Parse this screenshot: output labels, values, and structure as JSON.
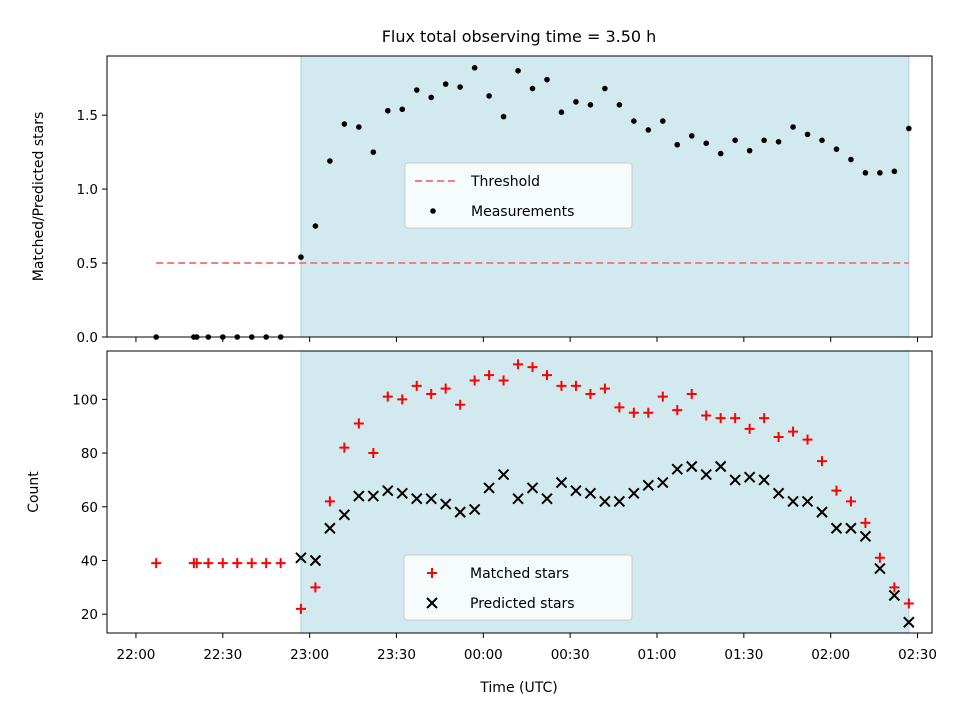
{
  "chart_data": {
    "type": "scatter",
    "title": "Flux total observing time = 3.50 h",
    "x_unit": "time (UTC)",
    "x_range": [
      "21:50",
      "02:35"
    ],
    "shaded_interval": [
      "22:57",
      "02:27"
    ],
    "shade_color": "#d3e9f0",
    "xticks": [
      "22:00",
      "22:30",
      "23:00",
      "23:30",
      "00:00",
      "00:30",
      "01:00",
      "01:30",
      "02:00",
      "02:30"
    ],
    "xlabel": "Time (UTC)",
    "panels": [
      {
        "id": "ratio",
        "ylabel": "Matched/Predicted stars",
        "ylim": [
          0,
          1.9
        ],
        "yticks": [
          0.0,
          0.5,
          1.0,
          1.5
        ],
        "ytick_labels": [
          "0.0",
          "0.5",
          "1.0",
          "1.5"
        ],
        "legend": {
          "placement": "center"
        },
        "series": [
          {
            "name": "Threshold",
            "type": "line",
            "style": "dashed",
            "color": "#f08080",
            "x": [
              "22:07",
              "02:27"
            ],
            "y": [
              0.5,
              0.5
            ]
          },
          {
            "name": "Measurements",
            "type": "scatter",
            "marker": "dot",
            "color": "#000000",
            "x": [
              "22:07",
              "22:20",
              "22:21",
              "22:25",
              "22:30",
              "22:35",
              "22:40",
              "22:45",
              "22:50",
              "22:57",
              "23:02",
              "23:07",
              "23:12",
              "23:17",
              "23:22",
              "23:27",
              "23:32",
              "23:37",
              "23:42",
              "23:47",
              "23:52",
              "23:57",
              "00:02",
              "00:07",
              "00:12",
              "00:17",
              "00:22",
              "00:27",
              "00:32",
              "00:37",
              "00:42",
              "00:47",
              "00:52",
              "00:57",
              "01:02",
              "01:07",
              "01:12",
              "01:17",
              "01:22",
              "01:27",
              "01:32",
              "01:37",
              "01:42",
              "01:47",
              "01:52",
              "01:57",
              "02:02",
              "02:07",
              "02:12",
              "02:17",
              "02:22",
              "02:27"
            ],
            "y": [
              0.0,
              0.0,
              0.0,
              0.0,
              0.0,
              0.0,
              0.0,
              0.0,
              0.0,
              0.54,
              0.75,
              1.19,
              1.44,
              1.42,
              1.25,
              1.53,
              1.54,
              1.67,
              1.62,
              1.71,
              1.69,
              1.82,
              1.63,
              1.49,
              1.8,
              1.68,
              1.74,
              1.52,
              1.59,
              1.57,
              1.68,
              1.57,
              1.46,
              1.4,
              1.46,
              1.3,
              1.36,
              1.31,
              1.24,
              1.33,
              1.26,
              1.33,
              1.32,
              1.42,
              1.37,
              1.33,
              1.27,
              1.2,
              1.11,
              1.11,
              1.12,
              1.41
            ]
          }
        ]
      },
      {
        "id": "count",
        "ylabel": "Count",
        "ylim": [
          13,
          118
        ],
        "yticks": [
          20,
          40,
          60,
          80,
          100
        ],
        "ytick_labels": [
          "20",
          "40",
          "60",
          "80",
          "100"
        ],
        "legend": {
          "placement": "lower center"
        },
        "series": [
          {
            "name": "Matched stars",
            "type": "scatter",
            "marker": "plus",
            "color": "#ff0000",
            "x": [
              "22:07",
              "22:20",
              "22:21",
              "22:25",
              "22:30",
              "22:35",
              "22:40",
              "22:45",
              "22:50",
              "22:57",
              "23:02",
              "23:07",
              "23:12",
              "23:17",
              "23:22",
              "23:27",
              "23:32",
              "23:37",
              "23:42",
              "23:47",
              "23:52",
              "23:57",
              "00:02",
              "00:07",
              "00:12",
              "00:17",
              "00:22",
              "00:27",
              "00:32",
              "00:37",
              "00:42",
              "00:47",
              "00:52",
              "00:57",
              "01:02",
              "01:07",
              "01:12",
              "01:17",
              "01:22",
              "01:27",
              "01:32",
              "01:37",
              "01:42",
              "01:47",
              "01:52",
              "01:57",
              "02:02",
              "02:07",
              "02:12",
              "02:17",
              "02:22",
              "02:27"
            ],
            "y": [
              39,
              39,
              39,
              39,
              39,
              39,
              39,
              39,
              39,
              22,
              30,
              62,
              82,
              91,
              80,
              101,
              100,
              105,
              102,
              104,
              98,
              107,
              109,
              107,
              113,
              112,
              109,
              105,
              105,
              102,
              104,
              97,
              95,
              95,
              101,
              96,
              102,
              94,
              93,
              93,
              89,
              93,
              86,
              88,
              85,
              77,
              66,
              62,
              54,
              41,
              30,
              24
            ]
          },
          {
            "name": "Predicted stars",
            "type": "scatter",
            "marker": "x",
            "color": "#000000",
            "x": [
              "22:57",
              "23:02",
              "23:07",
              "23:12",
              "23:17",
              "23:22",
              "23:27",
              "23:32",
              "23:37",
              "23:42",
              "23:47",
              "23:52",
              "23:57",
              "00:02",
              "00:07",
              "00:12",
              "00:17",
              "00:22",
              "00:27",
              "00:32",
              "00:37",
              "00:42",
              "00:47",
              "00:52",
              "00:57",
              "01:02",
              "01:07",
              "01:12",
              "01:17",
              "01:22",
              "01:27",
              "01:32",
              "01:37",
              "01:42",
              "01:47",
              "01:52",
              "01:57",
              "02:02",
              "02:07",
              "02:12",
              "02:17",
              "02:22",
              "02:27"
            ],
            "y": [
              41,
              40,
              52,
              57,
              64,
              64,
              66,
              65,
              63,
              63,
              61,
              58,
              59,
              67,
              72,
              63,
              67,
              63,
              69,
              66,
              65,
              62,
              62,
              65,
              68,
              69,
              74,
              75,
              72,
              75,
              70,
              71,
              70,
              65,
              62,
              62,
              58,
              52,
              52,
              49,
              37,
              27,
              17
            ]
          }
        ]
      }
    ]
  }
}
